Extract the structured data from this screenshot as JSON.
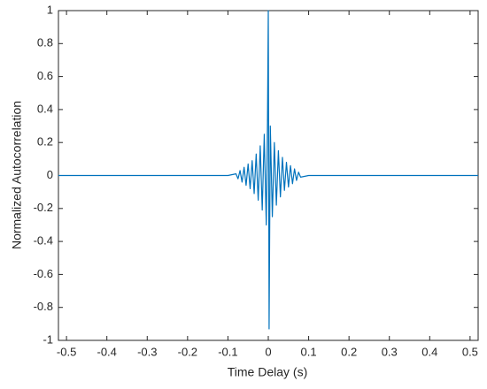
{
  "chart_data": {
    "type": "line",
    "xlabel": "Time Delay (s)",
    "ylabel": "Normalized Autocorrelation",
    "x": [
      -0.52,
      -0.1,
      -0.08,
      -0.075,
      -0.07,
      -0.065,
      -0.06,
      -0.055,
      -0.05,
      -0.045,
      -0.04,
      -0.035,
      -0.03,
      -0.025,
      -0.02,
      -0.015,
      -0.01,
      -0.005,
      -0.002,
      0,
      0.002,
      0.005,
      0.01,
      0.015,
      0.02,
      0.025,
      0.03,
      0.035,
      0.04,
      0.045,
      0.05,
      0.055,
      0.06,
      0.065,
      0.07,
      0.075,
      0.08,
      0.1,
      0.52
    ],
    "series": [
      {
        "color": "#0072bd",
        "values": [
          0,
          0,
          0.01,
          -0.02,
          0.03,
          -0.04,
          0.05,
          -0.06,
          0.07,
          -0.08,
          0.09,
          -0.11,
          0.13,
          -0.15,
          0.18,
          -0.21,
          0.25,
          -0.3,
          0.32,
          1,
          -0.93,
          0.3,
          -0.25,
          0.2,
          -0.18,
          0.15,
          -0.13,
          0.11,
          -0.09,
          0.08,
          -0.07,
          0.06,
          -0.05,
          0.04,
          -0.03,
          0.02,
          -0.01,
          0,
          0
        ]
      }
    ],
    "xlim": [
      -0.52,
      0.52
    ],
    "ylim": [
      -1,
      1
    ],
    "xticks": [
      -0.5,
      -0.4,
      -0.3,
      -0.2,
      -0.1,
      0,
      0.1,
      0.2,
      0.3,
      0.4,
      0.5
    ],
    "yticks": [
      -1,
      -0.8,
      -0.6,
      -0.4,
      -0.2,
      0,
      0.2,
      0.4,
      0.6,
      0.8,
      1
    ],
    "grid": false
  }
}
